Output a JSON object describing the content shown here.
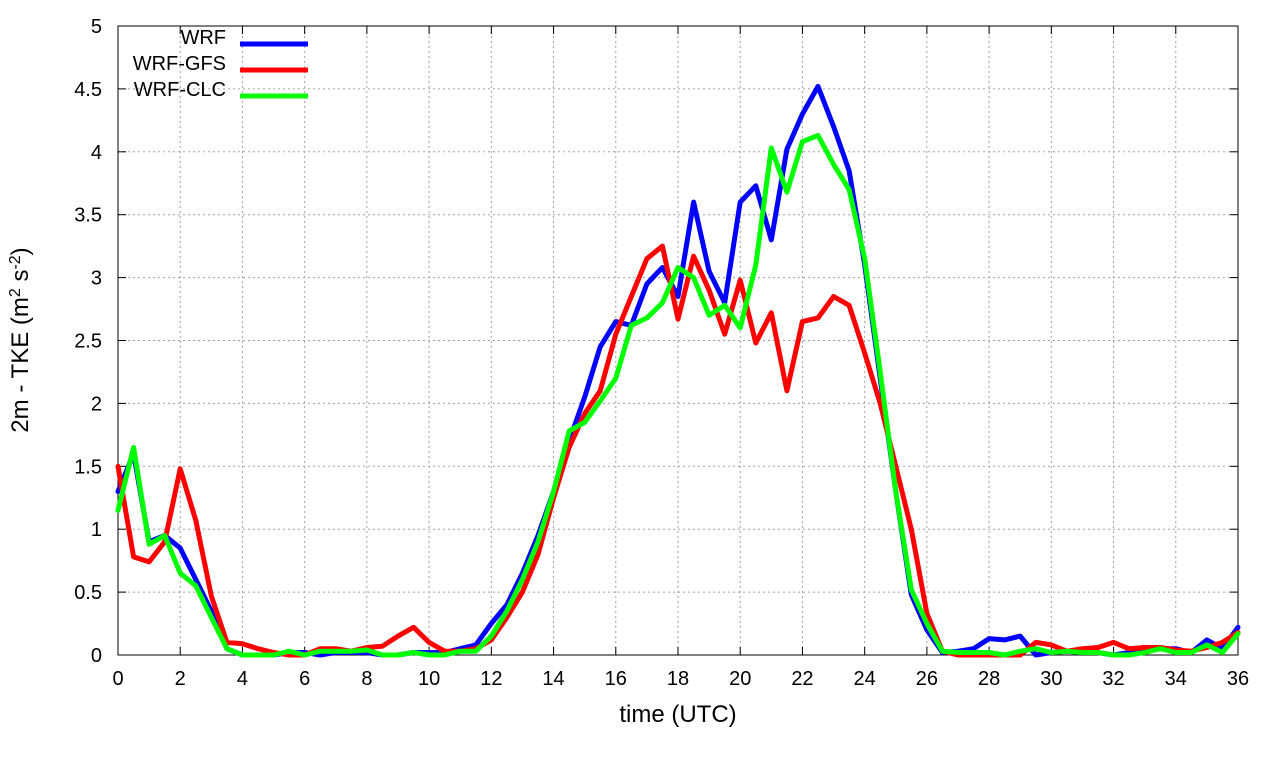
{
  "chart_data": {
    "type": "line",
    "title": "",
    "xlabel": "time (UTC)",
    "ylabel_main": "2m - TKE (m",
    "ylabel_sup1": "2",
    "ylabel_mid": " s",
    "ylabel_sup2": "-2",
    "ylabel_end": ")",
    "xlim": [
      0,
      36
    ],
    "ylim": [
      0,
      5
    ],
    "xticks": [
      0,
      2,
      4,
      6,
      8,
      10,
      12,
      14,
      16,
      18,
      20,
      22,
      24,
      26,
      28,
      30,
      32,
      34,
      36
    ],
    "yticks": [
      0,
      0.5,
      1,
      1.5,
      2,
      2.5,
      3,
      3.5,
      4,
      4.5,
      5
    ],
    "ytick_labels": [
      "0",
      "0.5",
      "1",
      "1.5",
      "2",
      "2.5",
      "3",
      "3.5",
      "4",
      "4.5",
      "5"
    ],
    "grid": true,
    "legend_position": "top-left",
    "x": [
      0,
      0.5,
      1,
      1.5,
      2,
      2.5,
      3,
      3.5,
      4,
      4.5,
      5,
      5.5,
      6,
      6.5,
      7,
      7.5,
      8,
      8.5,
      9,
      9.5,
      10,
      10.5,
      11,
      11.5,
      12,
      12.5,
      13,
      13.5,
      14,
      14.5,
      15,
      15.5,
      16,
      16.5,
      17,
      17.5,
      18,
      18.5,
      19,
      19.5,
      20,
      20.5,
      21,
      21.5,
      22,
      22.5,
      23,
      23.5,
      24,
      24.5,
      25,
      25.5,
      26,
      26.5,
      27,
      27.5,
      28,
      28.5,
      29,
      29.5,
      30,
      30.5,
      31,
      31.5,
      32,
      32.5,
      33,
      33.5,
      34,
      34.5,
      35,
      35.5,
      36
    ],
    "series": [
      {
        "name": "WRF",
        "color": "#0000ff",
        "values": [
          1.3,
          1.6,
          0.9,
          0.95,
          0.85,
          0.6,
          0.35,
          0.05,
          0.0,
          0.0,
          0.0,
          0.02,
          0.02,
          0.0,
          0.02,
          0.02,
          0.02,
          0.0,
          0.0,
          0.02,
          0.02,
          0.02,
          0.05,
          0.08,
          0.25,
          0.4,
          0.65,
          0.95,
          1.3,
          1.7,
          2.05,
          2.45,
          2.65,
          2.62,
          2.95,
          3.08,
          2.85,
          3.6,
          3.05,
          2.8,
          3.6,
          3.73,
          3.3,
          4.02,
          4.3,
          4.52,
          4.2,
          3.85,
          3.1,
          2.2,
          1.3,
          0.48,
          0.2,
          0.02,
          0.03,
          0.05,
          0.13,
          0.12,
          0.15,
          0.0,
          0.02,
          0.03,
          0.02,
          0.02,
          0.0,
          0.02,
          0.03,
          0.05,
          0.05,
          0.02,
          0.12,
          0.05,
          0.22
        ]
      },
      {
        "name": "WRF-GFS",
        "color": "#ff0000",
        "values": [
          1.5,
          0.78,
          0.74,
          0.9,
          1.48,
          1.07,
          0.47,
          0.1,
          0.09,
          0.05,
          0.02,
          0.0,
          0.0,
          0.05,
          0.05,
          0.03,
          0.06,
          0.07,
          0.15,
          0.22,
          0.1,
          0.03,
          0.03,
          0.05,
          0.12,
          0.3,
          0.5,
          0.8,
          1.25,
          1.65,
          1.92,
          2.1,
          2.55,
          2.85,
          3.15,
          3.25,
          2.67,
          3.17,
          2.9,
          2.55,
          2.98,
          2.48,
          2.72,
          2.1,
          2.65,
          2.68,
          2.85,
          2.78,
          2.4,
          2.0,
          1.5,
          1.0,
          0.33,
          0.03,
          0.0,
          0.0,
          0.0,
          0.0,
          0.0,
          0.1,
          0.08,
          0.03,
          0.05,
          0.06,
          0.1,
          0.05,
          0.06,
          0.06,
          0.04,
          0.03,
          0.06,
          0.1,
          0.18
        ]
      },
      {
        "name": "WRF-CLC",
        "color": "#00ff00",
        "values": [
          1.15,
          1.65,
          0.88,
          0.95,
          0.65,
          0.55,
          0.3,
          0.05,
          0.0,
          0.0,
          0.0,
          0.03,
          0.0,
          0.03,
          0.03,
          0.03,
          0.04,
          0.0,
          0.0,
          0.02,
          0.0,
          0.0,
          0.03,
          0.03,
          0.15,
          0.35,
          0.6,
          0.9,
          1.3,
          1.78,
          1.85,
          2.02,
          2.2,
          2.62,
          2.68,
          2.8,
          3.08,
          3.0,
          2.7,
          2.78,
          2.6,
          3.1,
          4.03,
          3.68,
          4.08,
          4.13,
          3.9,
          3.7,
          3.15,
          2.25,
          1.3,
          0.52,
          0.25,
          0.03,
          0.02,
          0.02,
          0.02,
          0.0,
          0.03,
          0.05,
          0.02,
          0.03,
          0.02,
          0.02,
          0.0,
          0.0,
          0.02,
          0.05,
          0.02,
          0.02,
          0.08,
          0.02,
          0.17
        ]
      }
    ]
  }
}
